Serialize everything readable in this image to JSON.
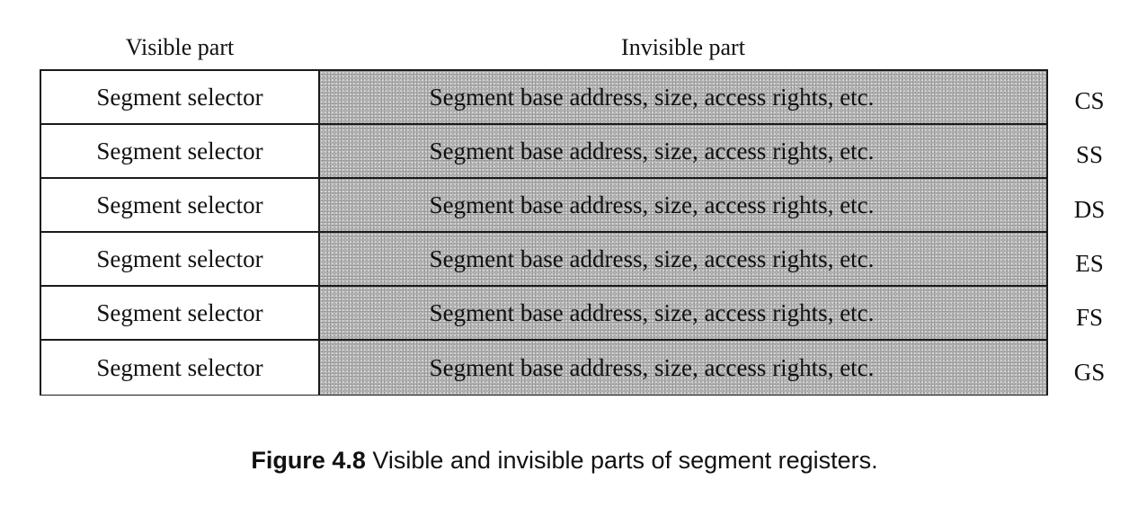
{
  "headers": {
    "visible": "Visible part",
    "invisible": "Invisible part"
  },
  "rows": [
    {
      "selector": "Segment selector",
      "descriptor": "Segment base address, size, access rights, etc.",
      "register": "CS"
    },
    {
      "selector": "Segment selector",
      "descriptor": "Segment base address, size, access rights, etc.",
      "register": "SS"
    },
    {
      "selector": "Segment selector",
      "descriptor": "Segment base address, size, access rights, etc.",
      "register": "DS"
    },
    {
      "selector": "Segment selector",
      "descriptor": "Segment base address, size, access rights, etc.",
      "register": "ES"
    },
    {
      "selector": "Segment selector",
      "descriptor": "Segment base address, size, access rights, etc.",
      "register": "FS"
    },
    {
      "selector": "Segment selector",
      "descriptor": "Segment base address, size, access rights, etc.",
      "register": "GS"
    }
  ],
  "caption": {
    "label": "Figure 4.8",
    "text": "Visible and invisible parts of segment registers."
  }
}
